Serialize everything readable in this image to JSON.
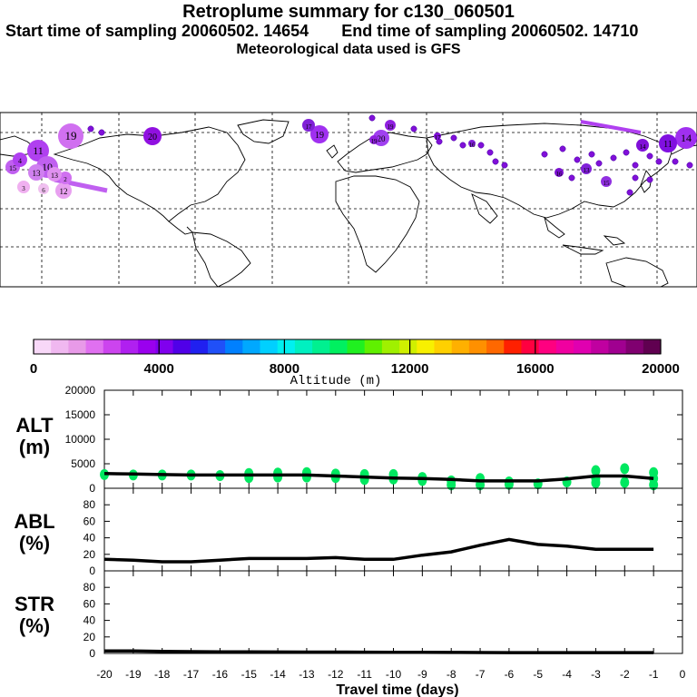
{
  "header": {
    "title": "Retroplume summary for c130_060501",
    "sampling_start_label": "Start time of sampling 20060502. 14654",
    "sampling_end_label": "End time of sampling 20060502. 14710",
    "met_data_label": "Meteorological data used is GFS"
  },
  "map": {
    "plume_labels": [
      "19",
      "11",
      "20",
      "19",
      "17",
      "20",
      "19",
      "14",
      "11",
      "10",
      "13",
      "15",
      "12",
      "4",
      "2",
      "15",
      "13",
      "16",
      "14",
      "13",
      "3",
      "6",
      "19",
      "17",
      "16"
    ]
  },
  "colorbar": {
    "tick_labels": [
      "0",
      "4000",
      "8000",
      "12000",
      "16000",
      "20000"
    ],
    "label": "Altitude (m)",
    "colors": [
      "#f8d8f8",
      "#f0b8f0",
      "#e89ae8",
      "#e070f0",
      "#cc44ee",
      "#b020f0",
      "#9a00ee",
      "#8000ee",
      "#5000e8",
      "#2020f0",
      "#2050f8",
      "#0080ff",
      "#00a8ff",
      "#00d0ff",
      "#00f0f0",
      "#00f0c0",
      "#00f090",
      "#00f060",
      "#20f020",
      "#60f000",
      "#a0f000",
      "#d0f000",
      "#f8f000",
      "#ffd000",
      "#ffb000",
      "#ff9000",
      "#ff6800",
      "#ff2000",
      "#ff0040",
      "#ff0080",
      "#f000a0",
      "#e000b0",
      "#c000a0",
      "#a00090",
      "#800070",
      "#600050"
    ],
    "range": [
      0,
      20000
    ]
  },
  "chart_data": [
    {
      "type": "scatter",
      "panel": "ALT",
      "ylabel": "ALT",
      "yunit": "(m)",
      "ylim": [
        0,
        20000
      ],
      "yticks": [
        0,
        5000,
        10000,
        15000,
        20000
      ],
      "xlim": [
        -20,
        0
      ],
      "line": {
        "x": [
          -20,
          -19,
          -18,
          -17,
          -16,
          -15,
          -14,
          -13,
          -12,
          -11,
          -10,
          -9,
          -8,
          -7,
          -6,
          -5,
          -4,
          -3,
          -2,
          -1
        ],
        "y": [
          3000,
          2900,
          2800,
          2700,
          2700,
          2700,
          2700,
          2700,
          2500,
          2300,
          2100,
          2000,
          1800,
          1500,
          1500,
          1500,
          1900,
          2500,
          2500,
          2000
        ]
      },
      "points": {
        "x": [
          -20,
          -19,
          -18,
          -17,
          -16,
          -15,
          -15,
          -14,
          -14,
          -13,
          -13,
          -12,
          -12,
          -11,
          -11,
          -10,
          -10,
          -9,
          -9,
          -8,
          -8,
          -7,
          -7,
          -6,
          -6,
          -5,
          -4,
          -3,
          -3,
          -3,
          -2,
          -2,
          -1,
          -1,
          -1
        ],
        "y": [
          2800,
          2700,
          2700,
          2700,
          2600,
          3000,
          2200,
          3100,
          2300,
          3200,
          2300,
          2900,
          2200,
          2800,
          1800,
          2800,
          1900,
          2200,
          1600,
          1500,
          700,
          2000,
          700,
          1300,
          800,
          900,
          1300,
          3600,
          2000,
          1100,
          4000,
          1200,
          3200,
          2000,
          700
        ]
      },
      "color": "#00e860"
    },
    {
      "type": "line",
      "panel": "ABL",
      "ylabel": "ABL",
      "yunit": "(%)",
      "ylim": [
        0,
        100
      ],
      "yticks": [
        0,
        20,
        40,
        60,
        80
      ],
      "xlim": [
        -20,
        0
      ],
      "x": [
        -20,
        -19,
        -18,
        -17,
        -16,
        -15,
        -14,
        -13,
        -12,
        -11,
        -10,
        -9,
        -8,
        -7,
        -6,
        -5,
        -4,
        -3,
        -2,
        -1
      ],
      "y": [
        14,
        13,
        11,
        11,
        13,
        15,
        15,
        15,
        16,
        14,
        14,
        19,
        23,
        31,
        38,
        32,
        30,
        26,
        26,
        26
      ]
    },
    {
      "type": "line",
      "panel": "STR",
      "ylabel": "STR",
      "yunit": "(%)",
      "ylim": [
        0,
        100
      ],
      "yticks": [
        0,
        20,
        40,
        60,
        80
      ],
      "xlim": [
        -20,
        0
      ],
      "x": [
        -20,
        -19,
        -18,
        -17,
        -16,
        -15,
        -14,
        -13,
        -12,
        -11,
        -10,
        -9,
        -8,
        -7,
        -6,
        -5,
        -4,
        -3,
        -2,
        -1
      ],
      "y": [
        3,
        3,
        2.5,
        2.2,
        2,
        2,
        1.8,
        1.7,
        1.6,
        1.5,
        1.4,
        1.3,
        1.2,
        1.1,
        1,
        1,
        1,
        1,
        1,
        1
      ]
    }
  ],
  "xaxis": {
    "label": "Travel time (days)",
    "ticks": [
      "-20",
      "-19",
      "-18",
      "-17",
      "-16",
      "-15",
      "-14",
      "-13",
      "-12",
      "-11",
      "-10",
      "-9",
      "-8",
      "-7",
      "-6",
      "-5",
      "-4",
      "-3",
      "-2",
      "-1",
      "0"
    ]
  }
}
